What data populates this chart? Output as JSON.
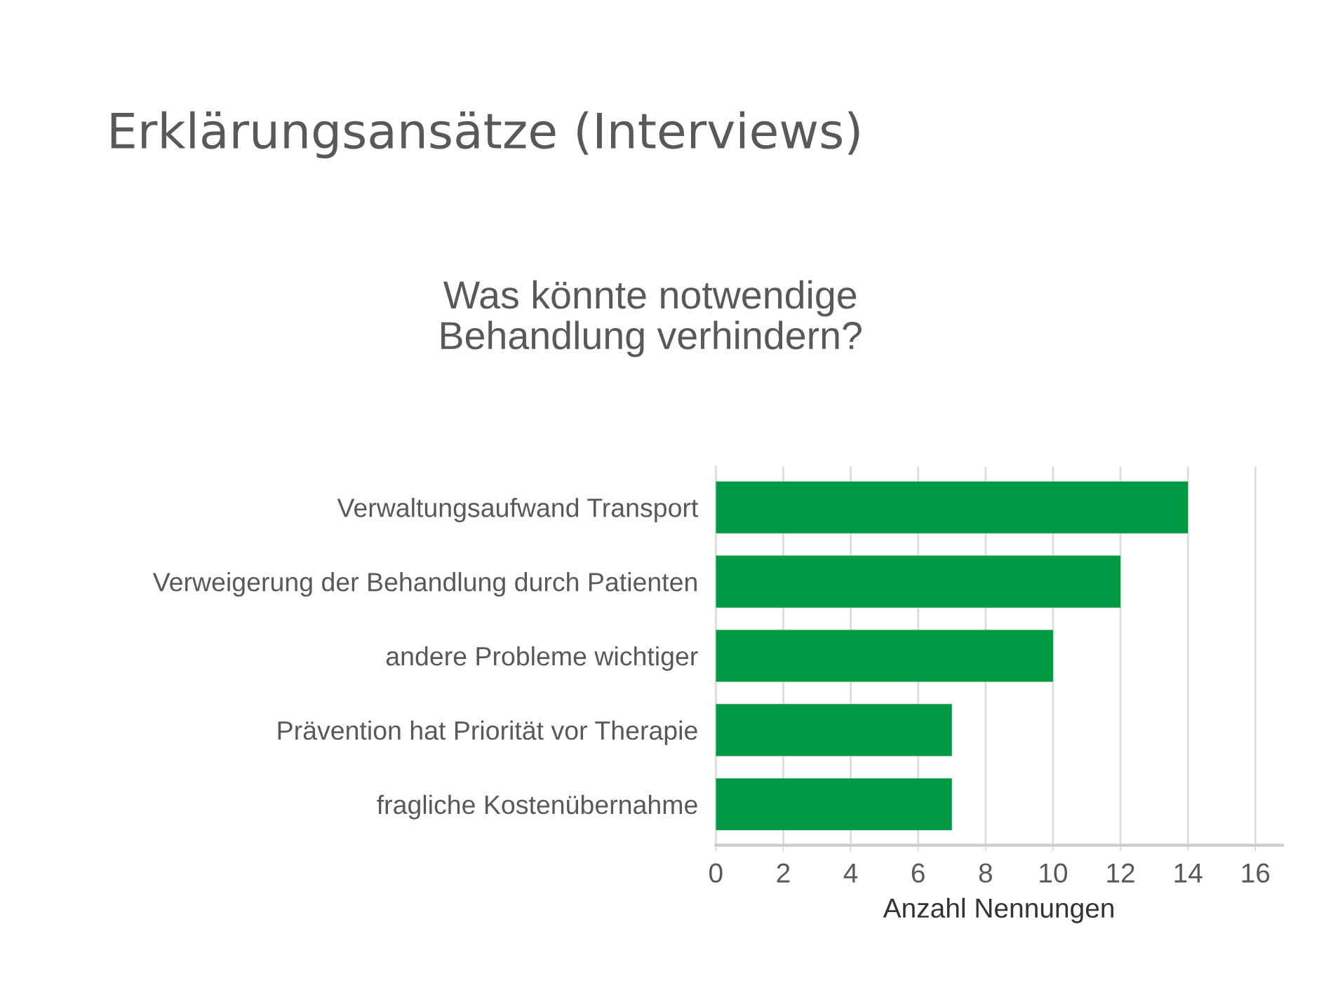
{
  "chart_data": {
    "type": "bar",
    "orientation": "horizontal",
    "title": "Erklärungsansätze (Interviews)",
    "subtitle": "Was könnte notwendige\nBehandlung verhindern?",
    "categories": [
      "Verwaltungsaufwand Transport",
      "Verweigerung der Behandlung durch Patienten",
      "andere Probleme wichtiger",
      "Prävention hat Priorität vor Therapie",
      "fragliche Kostenübernahme"
    ],
    "values": [
      14,
      12,
      10,
      7,
      7
    ],
    "color": "#009a44",
    "xlabel": "Anzahl Nennungen",
    "xlim": [
      0,
      16.8
    ],
    "xticks": [
      0,
      2,
      4,
      6,
      8,
      10,
      12,
      14,
      16
    ],
    "grid": "x"
  }
}
